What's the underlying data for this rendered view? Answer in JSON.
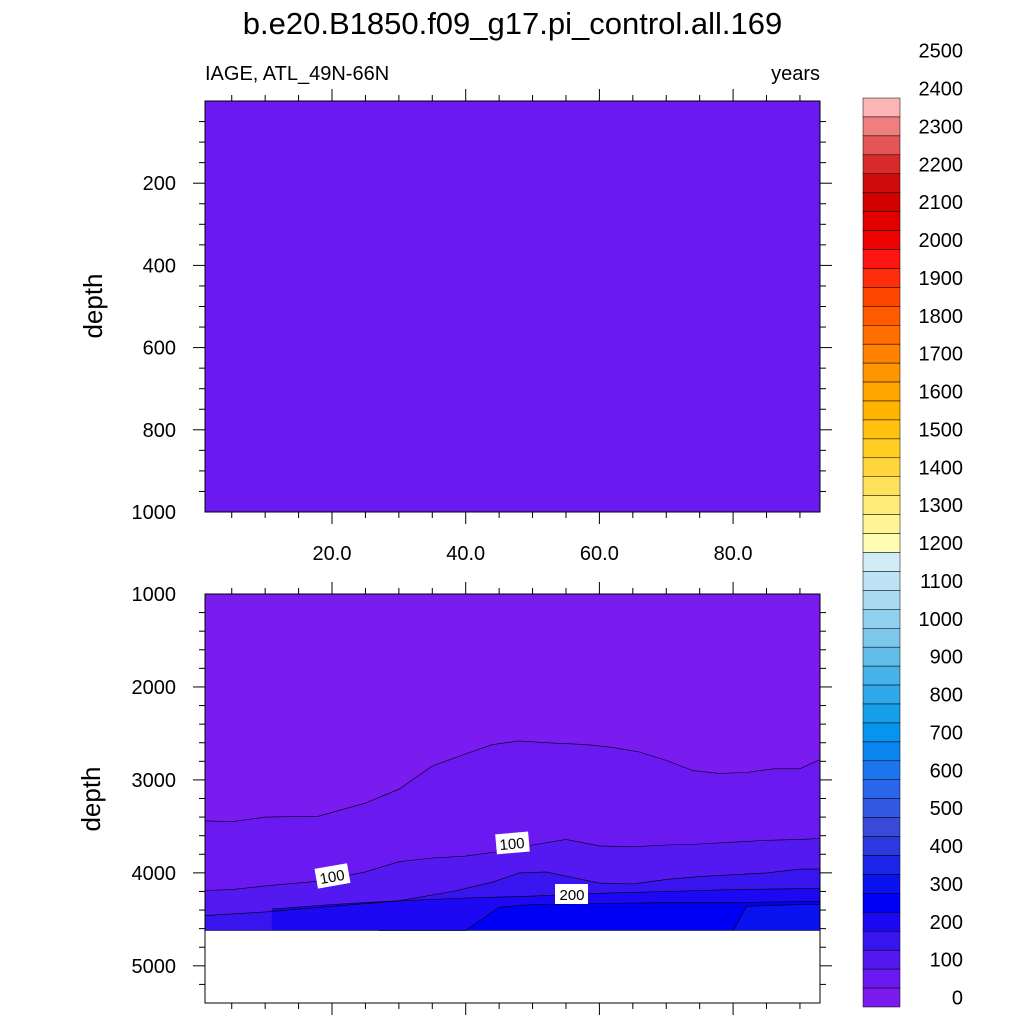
{
  "title": "b.e20.B1850.f09_g17.pi_control.all.169",
  "left_string": "IAGE, ATL_49N-66N",
  "right_string": "years",
  "colorbar": {
    "labels": [
      "2500",
      "2400",
      "2300",
      "2200",
      "2100",
      "2000",
      "1900",
      "1800",
      "1700",
      "1600",
      "1500",
      "1400",
      "1300",
      "1200",
      "1100",
      "1000",
      "900",
      "800",
      "700",
      "600",
      "500",
      "400",
      "300",
      "200",
      "100",
      "0"
    ],
    "colors": [
      "#fbb5b5",
      "#f07e7e",
      "#e45656",
      "#d82a2a",
      "#cf0a0a",
      "#d40000",
      "#e30000",
      "#f00000",
      "#ff1414",
      "#ff2d0a",
      "#ff4600",
      "#ff5a00",
      "#ff6e00",
      "#ff8200",
      "#ff9600",
      "#ffa500",
      "#ffb400",
      "#ffc30f",
      "#ffcd23",
      "#ffd73c",
      "#ffe15a",
      "#ffeb78",
      "#fff596",
      "#fffcb4",
      "#d2ecf7",
      "#bde3f4",
      "#a8dbf1",
      "#92d1ee",
      "#7cc7eb",
      "#62bdea",
      "#48b3ea",
      "#2fa9eb",
      "#16a0ec",
      "#0595ee",
      "#0a84ef",
      "#1a75ee",
      "#2a66ea",
      "#3358e4",
      "#3a4ad8",
      "#2c38e0",
      "#1b25e8",
      "#0a12f0",
      "#0000f5",
      "#1c08f2",
      "#3814ef",
      "#5418f0",
      "#6a1af0",
      "#7a1cf0"
    ]
  },
  "top_panel": {
    "ylabel": "depth",
    "yticks": [
      "200",
      "400",
      "600",
      "800",
      "1000"
    ],
    "xticks": [
      "20.0",
      "40.0",
      "60.0",
      "80.0"
    ],
    "fill_color": "#6a1af0"
  },
  "bottom_panel": {
    "ylabel": "depth",
    "yticks": [
      "1000",
      "2000",
      "3000",
      "4000",
      "5000"
    ],
    "contour_labels": [
      "100",
      "100",
      "200"
    ]
  },
  "chart_data": {
    "type": "heatmap",
    "title": "b.e20.B1850.f09_g17.pi_control.all.169",
    "variable": "IAGE, ATL_49N-66N",
    "units": "years",
    "xlabel": "",
    "ylabel": "depth",
    "xlim": [
      1,
      93
    ],
    "xticks": [
      20,
      40,
      60,
      80
    ],
    "ylim_top": [
      0,
      1000
    ],
    "ylim_bottom": [
      1000,
      5400
    ],
    "ocean_bottom_depth": 4620,
    "contour_levels": [
      0,
      50,
      100,
      150,
      200,
      250,
      300,
      350,
      400,
      450,
      500,
      550,
      600,
      650,
      700,
      750,
      800,
      850,
      900,
      950,
      1000,
      1050,
      1100,
      1150,
      1200,
      1250,
      1300,
      1350,
      1400,
      1450,
      1500,
      1550,
      1600,
      1650,
      1700,
      1750,
      1800,
      1850,
      1900,
      1950,
      2000,
      2050,
      2100,
      2150,
      2200,
      2250,
      2300,
      2350,
      2400,
      2450,
      2500
    ],
    "contour_lines": [
      {
        "level": 50,
        "x": [
          1,
          5,
          10,
          18,
          25,
          30,
          35,
          40,
          44,
          48,
          52,
          58,
          62,
          66,
          70,
          74,
          78,
          82,
          86,
          90,
          93
        ],
        "depth": [
          3440,
          3450,
          3400,
          3390,
          3250,
          3100,
          2850,
          2720,
          2620,
          2580,
          2600,
          2620,
          2650,
          2700,
          2790,
          2900,
          2930,
          2920,
          2880,
          2880,
          2780
        ]
      },
      {
        "level": 100,
        "x": [
          1,
          5,
          10,
          18,
          25,
          30,
          35,
          40,
          45,
          50,
          55,
          60,
          65,
          70,
          75,
          80,
          85,
          90,
          93
        ],
        "depth": [
          4190,
          4180,
          4140,
          4090,
          3990,
          3880,
          3840,
          3820,
          3770,
          3700,
          3640,
          3710,
          3720,
          3700,
          3690,
          3670,
          3650,
          3640,
          3630
        ]
      },
      {
        "level": 150,
        "x": [
          1,
          10,
          20,
          30,
          38,
          44,
          48,
          52,
          56,
          60,
          65,
          70,
          75,
          80,
          85,
          90,
          93
        ],
        "depth": [
          4460,
          4420,
          4360,
          4300,
          4200,
          4100,
          4000,
          3990,
          4050,
          4110,
          4120,
          4070,
          4040,
          4020,
          4000,
          3960,
          3960
        ]
      },
      {
        "level": 200,
        "x": [
          11,
          20,
          30,
          40,
          50,
          60,
          70,
          80,
          90,
          93
        ],
        "depth": [
          4390,
          4340,
          4300,
          4270,
          4250,
          4220,
          4200,
          4180,
          4170,
          4170
        ]
      },
      {
        "level": 250,
        "x": [
          27,
          40,
          45,
          50,
          60,
          70,
          80,
          90,
          93
        ],
        "depth": [
          4620,
          4620,
          4370,
          4340,
          4330,
          4320,
          4320,
          4310,
          4310
        ]
      },
      {
        "level": 300,
        "x": [
          80,
          82,
          86,
          90,
          93
        ],
        "depth": [
          4620,
          4360,
          4350,
          4340,
          4340
        ]
      }
    ],
    "top_panel_value": 0
  }
}
